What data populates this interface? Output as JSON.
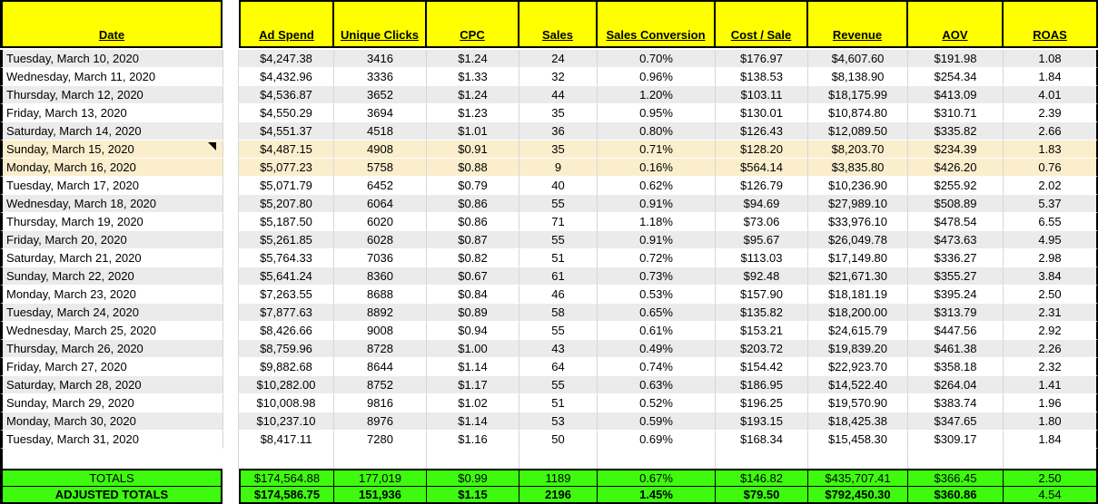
{
  "colors": {
    "header_fill": "#FFFF00",
    "totals_fill": "#3EFA0F",
    "row_stripe": "#EBEBEB",
    "row_highlight": "#FAEECD",
    "gridline": "#D6D6D6"
  },
  "table": {
    "columns": [
      {
        "key": "date",
        "label": "Date"
      },
      {
        "key": "spacer",
        "label": ""
      },
      {
        "key": "ad_spend",
        "label": "Ad Spend"
      },
      {
        "key": "unique_clicks",
        "label": "Unique Clicks"
      },
      {
        "key": "cpc",
        "label": "CPC"
      },
      {
        "key": "sales",
        "label": "Sales"
      },
      {
        "key": "sales_conversion",
        "label": "Sales Conversion"
      },
      {
        "key": "cost_per_sale",
        "label": "Cost / Sale"
      },
      {
        "key": "revenue",
        "label": "Revenue"
      },
      {
        "key": "aov",
        "label": "AOV"
      },
      {
        "key": "roas",
        "label": "ROAS"
      }
    ],
    "rows": [
      {
        "date": "Tuesday, March 10, 2020",
        "ad_spend": "$4,247.38",
        "unique_clicks": "3416",
        "cpc": "$1.24",
        "sales": "24",
        "sales_conversion": "0.70%",
        "cost_per_sale": "$176.97",
        "revenue": "$4,607.60",
        "aov": "$191.98",
        "roas": "1.08",
        "style": "stripe",
        "comment_marker": false
      },
      {
        "date": "Wednesday, March 11, 2020",
        "ad_spend": "$4,432.96",
        "unique_clicks": "3336",
        "cpc": "$1.33",
        "sales": "32",
        "sales_conversion": "0.96%",
        "cost_per_sale": "$138.53",
        "revenue": "$8,138.90",
        "aov": "$254.34",
        "roas": "1.84",
        "style": "plain",
        "comment_marker": false
      },
      {
        "date": "Thursday, March 12, 2020",
        "ad_spend": "$4,536.87",
        "unique_clicks": "3652",
        "cpc": "$1.24",
        "sales": "44",
        "sales_conversion": "1.20%",
        "cost_per_sale": "$103.11",
        "revenue": "$18,175.99",
        "aov": "$413.09",
        "roas": "4.01",
        "style": "stripe",
        "comment_marker": false
      },
      {
        "date": "Friday, March 13, 2020",
        "ad_spend": "$4,550.29",
        "unique_clicks": "3694",
        "cpc": "$1.23",
        "sales": "35",
        "sales_conversion": "0.95%",
        "cost_per_sale": "$130.01",
        "revenue": "$10,874.80",
        "aov": "$310.71",
        "roas": "2.39",
        "style": "plain",
        "comment_marker": false
      },
      {
        "date": "Saturday, March 14, 2020",
        "ad_spend": "$4,551.37",
        "unique_clicks": "4518",
        "cpc": "$1.01",
        "sales": "36",
        "sales_conversion": "0.80%",
        "cost_per_sale": "$126.43",
        "revenue": "$12,089.50",
        "aov": "$335.82",
        "roas": "2.66",
        "style": "stripe",
        "comment_marker": false
      },
      {
        "date": "Sunday, March 15, 2020",
        "ad_spend": "$4,487.15",
        "unique_clicks": "4908",
        "cpc": "$0.91",
        "sales": "35",
        "sales_conversion": "0.71%",
        "cost_per_sale": "$128.20",
        "revenue": "$8,203.70",
        "aov": "$234.39",
        "roas": "1.83",
        "style": "hl",
        "comment_marker": true
      },
      {
        "date": "Monday, March 16, 2020",
        "ad_spend": "$5,077.23",
        "unique_clicks": "5758",
        "cpc": "$0.88",
        "sales": "9",
        "sales_conversion": "0.16%",
        "cost_per_sale": "$564.14",
        "revenue": "$3,835.80",
        "aov": "$426.20",
        "roas": "0.76",
        "style": "hl",
        "comment_marker": false
      },
      {
        "date": "Tuesday, March 17, 2020",
        "ad_spend": "$5,071.79",
        "unique_clicks": "6452",
        "cpc": "$0.79",
        "sales": "40",
        "sales_conversion": "0.62%",
        "cost_per_sale": "$126.79",
        "revenue": "$10,236.90",
        "aov": "$255.92",
        "roas": "2.02",
        "style": "plain",
        "comment_marker": false
      },
      {
        "date": "Wednesday, March 18, 2020",
        "ad_spend": "$5,207.80",
        "unique_clicks": "6064",
        "cpc": "$0.86",
        "sales": "55",
        "sales_conversion": "0.91%",
        "cost_per_sale": "$94.69",
        "revenue": "$27,989.10",
        "aov": "$508.89",
        "roas": "5.37",
        "style": "stripe",
        "comment_marker": false
      },
      {
        "date": "Thursday, March 19, 2020",
        "ad_spend": "$5,187.50",
        "unique_clicks": "6020",
        "cpc": "$0.86",
        "sales": "71",
        "sales_conversion": "1.18%",
        "cost_per_sale": "$73.06",
        "revenue": "$33,976.10",
        "aov": "$478.54",
        "roas": "6.55",
        "style": "plain",
        "comment_marker": false
      },
      {
        "date": "Friday, March 20, 2020",
        "ad_spend": "$5,261.85",
        "unique_clicks": "6028",
        "cpc": "$0.87",
        "sales": "55",
        "sales_conversion": "0.91%",
        "cost_per_sale": "$95.67",
        "revenue": "$26,049.78",
        "aov": "$473.63",
        "roas": "4.95",
        "style": "stripe",
        "comment_marker": false
      },
      {
        "date": "Saturday, March 21, 2020",
        "ad_spend": "$5,764.33",
        "unique_clicks": "7036",
        "cpc": "$0.82",
        "sales": "51",
        "sales_conversion": "0.72%",
        "cost_per_sale": "$113.03",
        "revenue": "$17,149.80",
        "aov": "$336.27",
        "roas": "2.98",
        "style": "plain",
        "comment_marker": false
      },
      {
        "date": "Sunday, March 22, 2020",
        "ad_spend": "$5,641.24",
        "unique_clicks": "8360",
        "cpc": "$0.67",
        "sales": "61",
        "sales_conversion": "0.73%",
        "cost_per_sale": "$92.48",
        "revenue": "$21,671.30",
        "aov": "$355.27",
        "roas": "3.84",
        "style": "stripe",
        "comment_marker": false
      },
      {
        "date": "Monday, March 23, 2020",
        "ad_spend": "$7,263.55",
        "unique_clicks": "8688",
        "cpc": "$0.84",
        "sales": "46",
        "sales_conversion": "0.53%",
        "cost_per_sale": "$157.90",
        "revenue": "$18,181.19",
        "aov": "$395.24",
        "roas": "2.50",
        "style": "plain",
        "comment_marker": false
      },
      {
        "date": "Tuesday, March 24, 2020",
        "ad_spend": "$7,877.63",
        "unique_clicks": "8892",
        "cpc": "$0.89",
        "sales": "58",
        "sales_conversion": "0.65%",
        "cost_per_sale": "$135.82",
        "revenue": "$18,200.00",
        "aov": "$313.79",
        "roas": "2.31",
        "style": "stripe",
        "comment_marker": false
      },
      {
        "date": "Wednesday, March 25, 2020",
        "ad_spend": "$8,426.66",
        "unique_clicks": "9008",
        "cpc": "$0.94",
        "sales": "55",
        "sales_conversion": "0.61%",
        "cost_per_sale": "$153.21",
        "revenue": "$24,615.79",
        "aov": "$447.56",
        "roas": "2.92",
        "style": "plain",
        "comment_marker": false
      },
      {
        "date": "Thursday, March 26, 2020",
        "ad_spend": "$8,759.96",
        "unique_clicks": "8728",
        "cpc": "$1.00",
        "sales": "43",
        "sales_conversion": "0.49%",
        "cost_per_sale": "$203.72",
        "revenue": "$19,839.20",
        "aov": "$461.38",
        "roas": "2.26",
        "style": "stripe",
        "comment_marker": false
      },
      {
        "date": "Friday, March 27, 2020",
        "ad_spend": "$9,882.68",
        "unique_clicks": "8644",
        "cpc": "$1.14",
        "sales": "64",
        "sales_conversion": "0.74%",
        "cost_per_sale": "$154.42",
        "revenue": "$22,923.70",
        "aov": "$358.18",
        "roas": "2.32",
        "style": "plain",
        "comment_marker": false
      },
      {
        "date": "Saturday, March 28, 2020",
        "ad_spend": "$10,282.00",
        "unique_clicks": "8752",
        "cpc": "$1.17",
        "sales": "55",
        "sales_conversion": "0.63%",
        "cost_per_sale": "$186.95",
        "revenue": "$14,522.40",
        "aov": "$264.04",
        "roas": "1.41",
        "style": "stripe",
        "comment_marker": false
      },
      {
        "date": "Sunday, March 29, 2020",
        "ad_spend": "$10,008.98",
        "unique_clicks": "9816",
        "cpc": "$1.02",
        "sales": "51",
        "sales_conversion": "0.52%",
        "cost_per_sale": "$196.25",
        "revenue": "$19,570.90",
        "aov": "$383.74",
        "roas": "1.96",
        "style": "plain",
        "comment_marker": false
      },
      {
        "date": "Monday, March 30, 2020",
        "ad_spend": "$10,237.10",
        "unique_clicks": "8976",
        "cpc": "$1.14",
        "sales": "53",
        "sales_conversion": "0.59%",
        "cost_per_sale": "$193.15",
        "revenue": "$18,425.38",
        "aov": "$347.65",
        "roas": "1.80",
        "style": "stripe",
        "comment_marker": false
      },
      {
        "date": "Tuesday, March 31, 2020",
        "ad_spend": "$8,417.11",
        "unique_clicks": "7280",
        "cpc": "$1.16",
        "sales": "50",
        "sales_conversion": "0.69%",
        "cost_per_sale": "$168.34",
        "revenue": "$15,458.30",
        "aov": "$309.17",
        "roas": "1.84",
        "style": "plain",
        "comment_marker": false
      }
    ],
    "totals_row": {
      "label": "TOTALS",
      "ad_spend": "$174,564.88",
      "unique_clicks": "177,019",
      "cpc": "$0.99",
      "sales": "1189",
      "sales_conversion": "0.67%",
      "cost_per_sale": "$146.82",
      "revenue": "$435,707.41",
      "aov": "$366.45",
      "roas": "2.50"
    },
    "adjusted_totals_row": {
      "label": "ADJUSTED TOTALS",
      "ad_spend": "$174,586.75",
      "unique_clicks": "151,936",
      "cpc": "$1.15",
      "sales": "2196",
      "sales_conversion": "1.45%",
      "cost_per_sale": "$79.50",
      "revenue": "$792,450.30",
      "aov": "$360.86",
      "roas": "4.54"
    }
  }
}
